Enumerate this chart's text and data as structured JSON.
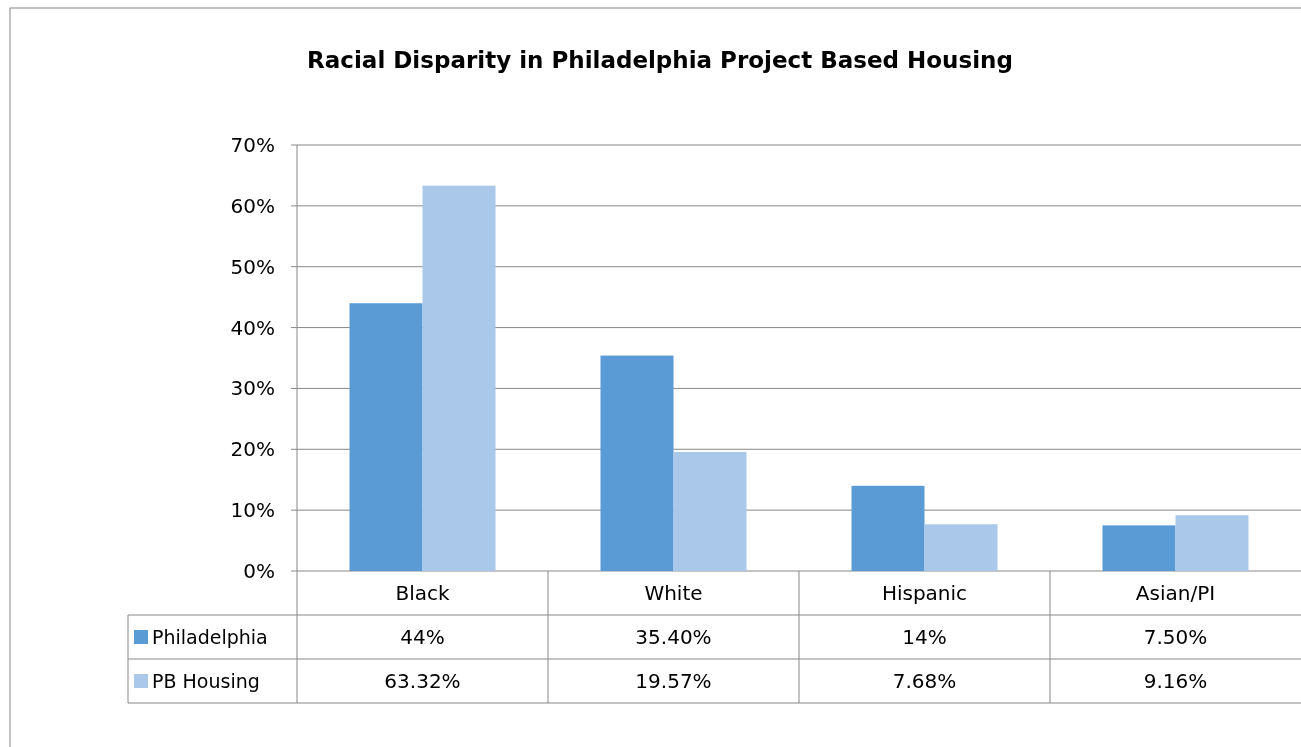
{
  "chart_data": {
    "type": "bar",
    "title": "Racial Disparity in Philadelphia Project Based Housing",
    "categories": [
      "Black",
      "White",
      "Hispanic",
      "Asian/PI"
    ],
    "series": [
      {
        "name": "Philadelphia",
        "color": "#5b9bd5",
        "values": [
          44,
          35.4,
          14,
          7.5
        ],
        "value_labels": [
          "44%",
          "35.40%",
          "14%",
          "7.50%"
        ]
      },
      {
        "name": "PB Housing",
        "color": "#a9c8ea",
        "values": [
          63.32,
          19.57,
          7.68,
          9.16
        ],
        "value_labels": [
          "63.32%",
          "19.57%",
          "7.68%",
          "9.16%"
        ]
      }
    ],
    "ylim": [
      0,
      70
    ],
    "yticks": [
      {
        "value": 0,
        "label": "0%"
      },
      {
        "value": 10,
        "label": "10%"
      },
      {
        "value": 20,
        "label": "20%"
      },
      {
        "value": 30,
        "label": "30%"
      },
      {
        "value": 40,
        "label": "40%"
      },
      {
        "value": 50,
        "label": "50%"
      },
      {
        "value": 60,
        "label": "60%"
      },
      {
        "value": 70,
        "label": "70%"
      }
    ],
    "grid": "y",
    "legend": "bottom"
  }
}
